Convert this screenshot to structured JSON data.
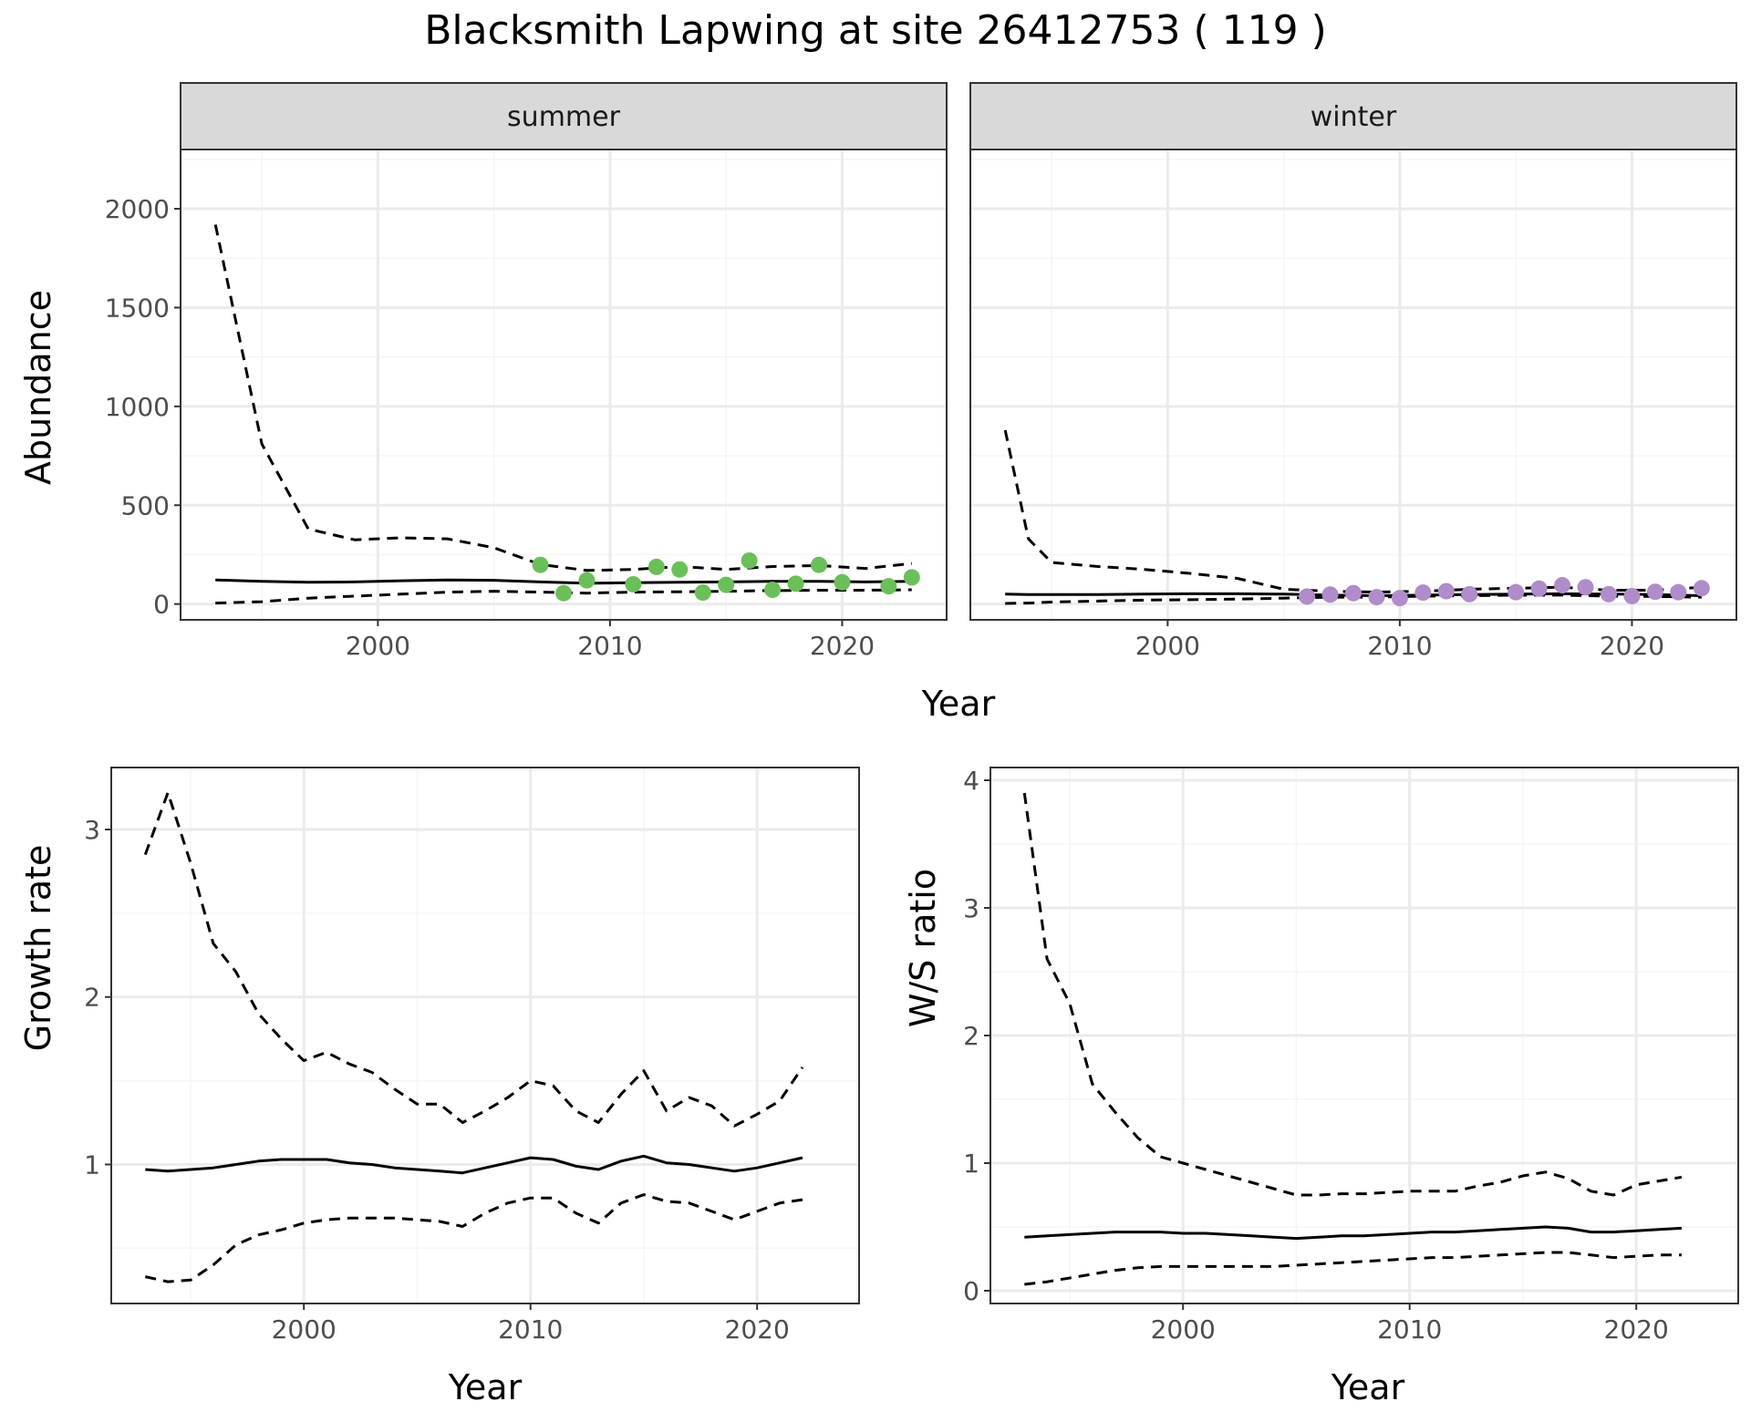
{
  "title": "Blacksmith Lapwing at site 26412753 ( 119 )",
  "colors": {
    "summer_points": "#6BBF59",
    "winter_points": "#B08CCB",
    "line": "#000000",
    "grid_major": "#EBEBEB",
    "grid_minor": "#F5F5F5",
    "strip_bg": "#D9D9D9",
    "panel_border": "#333333"
  },
  "chart_data": [
    {
      "type": "line",
      "id": "abundance",
      "ylabel": "Abundance",
      "xlabel": "Year",
      "xlim": [
        1991.5,
        2024.5
      ],
      "ylim": [
        -80,
        2300
      ],
      "x_ticks": [
        2000,
        2010,
        2020
      ],
      "y_ticks": [
        0,
        500,
        1000,
        1500,
        2000
      ],
      "grid": true,
      "facets": [
        {
          "strip": "summer",
          "x": [
            1993,
            1995,
            1997,
            1999,
            2001,
            2003,
            2005,
            2007,
            2009,
            2011,
            2013,
            2015,
            2017,
            2019,
            2021,
            2023
          ],
          "estimate": [
            122,
            115,
            110,
            112,
            118,
            122,
            120,
            112,
            105,
            108,
            110,
            112,
            115,
            115,
            112,
            115
          ],
          "lower": [
            5,
            12,
            30,
            40,
            50,
            60,
            65,
            60,
            55,
            60,
            62,
            65,
            68,
            70,
            70,
            72
          ],
          "upper": [
            1920,
            810,
            380,
            325,
            335,
            330,
            285,
            200,
            170,
            175,
            190,
            175,
            190,
            195,
            180,
            205
          ],
          "points": {
            "year": [
              2007,
              2008,
              2009,
              2011,
              2012,
              2013,
              2014,
              2015,
              2016,
              2017,
              2018,
              2019,
              2020,
              2022,
              2023
            ],
            "value": [
              198,
              55,
              120,
              100,
              188,
              175,
              58,
              97,
              220,
              72,
              103,
              198,
              110,
              90,
              135
            ]
          }
        },
        {
          "strip": "winter",
          "x": [
            1993,
            1994,
            1995,
            1997,
            1999,
            2001,
            2003,
            2005,
            2007,
            2009,
            2011,
            2013,
            2015,
            2017,
            2019,
            2021,
            2023
          ],
          "estimate": [
            50,
            48,
            48,
            48,
            50,
            52,
            52,
            50,
            45,
            42,
            45,
            48,
            50,
            52,
            50,
            48,
            42
          ],
          "lower": [
            3,
            5,
            10,
            15,
            20,
            22,
            25,
            30,
            35,
            35,
            40,
            42,
            45,
            45,
            40,
            38,
            35
          ],
          "upper": [
            880,
            330,
            210,
            190,
            175,
            155,
            130,
            75,
            65,
            60,
            65,
            75,
            80,
            85,
            70,
            70,
            85
          ],
          "points": {
            "year": [
              2006,
              2007,
              2008,
              2009,
              2010,
              2011,
              2012,
              2013,
              2015,
              2016,
              2017,
              2018,
              2019,
              2020,
              2021,
              2022,
              2023
            ],
            "value": [
              38,
              48,
              55,
              35,
              30,
              58,
              65,
              50,
              60,
              78,
              95,
              85,
              50,
              40,
              62,
              60,
              80
            ]
          }
        }
      ]
    },
    {
      "type": "line",
      "id": "growth",
      "ylabel": "Growth rate",
      "xlabel": "Year",
      "xlim": [
        1991.5,
        2024.5
      ],
      "ylim": [
        0.17,
        3.37
      ],
      "x_ticks": [
        2000,
        2010,
        2020
      ],
      "y_ticks": [
        1,
        2,
        3
      ],
      "grid": true,
      "x": [
        1993,
        1994,
        1995,
        1996,
        1997,
        1998,
        1999,
        2000,
        2001,
        2002,
        2003,
        2004,
        2005,
        2006,
        2007,
        2008,
        2009,
        2010,
        2011,
        2012,
        2013,
        2014,
        2015,
        2016,
        2017,
        2018,
        2019,
        2020,
        2021,
        2022
      ],
      "estimate": [
        0.97,
        0.96,
        0.97,
        0.98,
        1.0,
        1.02,
        1.03,
        1.03,
        1.03,
        1.01,
        1.0,
        0.98,
        0.97,
        0.96,
        0.95,
        0.98,
        1.01,
        1.04,
        1.03,
        0.99,
        0.97,
        1.02,
        1.05,
        1.01,
        1.0,
        0.98,
        0.96,
        0.98,
        1.01,
        1.04
      ],
      "lower": [
        0.33,
        0.3,
        0.31,
        0.4,
        0.52,
        0.58,
        0.61,
        0.65,
        0.67,
        0.68,
        0.68,
        0.68,
        0.67,
        0.66,
        0.63,
        0.71,
        0.77,
        0.8,
        0.8,
        0.71,
        0.65,
        0.77,
        0.82,
        0.78,
        0.77,
        0.72,
        0.67,
        0.72,
        0.77,
        0.79
      ],
      "upper": [
        2.85,
        3.22,
        2.8,
        2.32,
        2.15,
        1.9,
        1.75,
        1.62,
        1.67,
        1.6,
        1.55,
        1.45,
        1.36,
        1.36,
        1.25,
        1.32,
        1.4,
        1.5,
        1.47,
        1.32,
        1.25,
        1.42,
        1.56,
        1.32,
        1.4,
        1.35,
        1.23,
        1.3,
        1.38,
        1.58
      ]
    },
    {
      "type": "line",
      "id": "ratio",
      "ylabel": "W/S ratio",
      "xlabel": "Year",
      "xlim": [
        1991.5,
        2024.5
      ],
      "ylim": [
        -0.1,
        4.1
      ],
      "x_ticks": [
        2000,
        2010,
        2020
      ],
      "y_ticks": [
        0,
        1,
        2,
        3,
        4
      ],
      "grid": true,
      "x": [
        1993,
        1994,
        1995,
        1996,
        1997,
        1998,
        1999,
        2000,
        2001,
        2002,
        2003,
        2004,
        2005,
        2006,
        2007,
        2008,
        2009,
        2010,
        2011,
        2012,
        2013,
        2014,
        2015,
        2016,
        2017,
        2018,
        2019,
        2020,
        2021,
        2022
      ],
      "estimate": [
        0.42,
        0.43,
        0.44,
        0.45,
        0.46,
        0.46,
        0.46,
        0.45,
        0.45,
        0.44,
        0.43,
        0.42,
        0.41,
        0.42,
        0.43,
        0.43,
        0.44,
        0.45,
        0.46,
        0.46,
        0.47,
        0.48,
        0.49,
        0.5,
        0.49,
        0.46,
        0.46,
        0.47,
        0.48,
        0.49
      ],
      "lower": [
        0.05,
        0.07,
        0.1,
        0.13,
        0.16,
        0.18,
        0.19,
        0.19,
        0.19,
        0.19,
        0.19,
        0.19,
        0.2,
        0.21,
        0.22,
        0.23,
        0.24,
        0.25,
        0.26,
        0.26,
        0.27,
        0.28,
        0.29,
        0.3,
        0.3,
        0.28,
        0.26,
        0.27,
        0.28,
        0.28
      ],
      "upper": [
        3.9,
        2.6,
        2.25,
        1.62,
        1.4,
        1.2,
        1.05,
        1.0,
        0.95,
        0.9,
        0.85,
        0.8,
        0.75,
        0.75,
        0.76,
        0.76,
        0.77,
        0.78,
        0.78,
        0.78,
        0.82,
        0.85,
        0.9,
        0.93,
        0.88,
        0.78,
        0.75,
        0.83,
        0.86,
        0.89
      ]
    }
  ]
}
